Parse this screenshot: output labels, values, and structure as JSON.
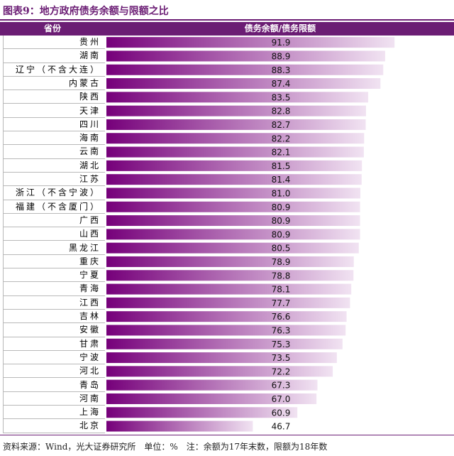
{
  "title": "图表9：地方政府债务余额与限额之比",
  "header": {
    "province": "省份",
    "ratio": "债务余额/债务限额"
  },
  "footer": "资料来源：Wind，光大证券研究所　单位：%　注：余额为17年末数，限额为18年数",
  "colors": {
    "accent": "#6b1d74",
    "bar_dark": "#76007a",
    "bar_light": "#f1e3f2"
  },
  "chart_data": {
    "type": "bar",
    "orientation": "horizontal",
    "title": "图表9：地方政府债务余额与限额之比",
    "xlabel": "债务余额/债务限额",
    "ylabel": "省份",
    "xlim": [
      0,
      100
    ],
    "grid": false,
    "categories": [
      "贵州",
      "湖南",
      "辽宁（不含大连）",
      "内蒙古",
      "陕西",
      "天津",
      "四川",
      "海南",
      "云南",
      "湖北",
      "江苏",
      "浙江（不含宁波）",
      "福建（不含厦门）",
      "广西",
      "山西",
      "黑龙江",
      "重庆",
      "宁夏",
      "青海",
      "江西",
      "吉林",
      "安徽",
      "甘肃",
      "宁波",
      "河北",
      "青岛",
      "河南",
      "上海",
      "北京"
    ],
    "values": [
      91.9,
      88.9,
      88.3,
      87.4,
      83.5,
      82.8,
      82.7,
      82.2,
      82.1,
      81.5,
      81.4,
      81.0,
      80.9,
      80.9,
      80.9,
      80.5,
      78.9,
      78.8,
      78.1,
      77.7,
      76.6,
      76.3,
      75.3,
      73.5,
      72.2,
      67.3,
      67.0,
      60.9,
      46.7
    ],
    "labels": [
      "91.9",
      "88.9",
      "88.3",
      "87.4",
      "83.5",
      "82.8",
      "82.7",
      "82.2",
      "82.1",
      "81.5",
      "81.4",
      "81.0",
      "80.9",
      "80.9",
      "80.9",
      "80.5",
      "78.9",
      "78.8",
      "78.1",
      "77.7",
      "76.6",
      "76.3",
      "75.3",
      "73.5",
      "72.2",
      "67.3",
      "67.0",
      "60.9",
      "46.7"
    ]
  }
}
